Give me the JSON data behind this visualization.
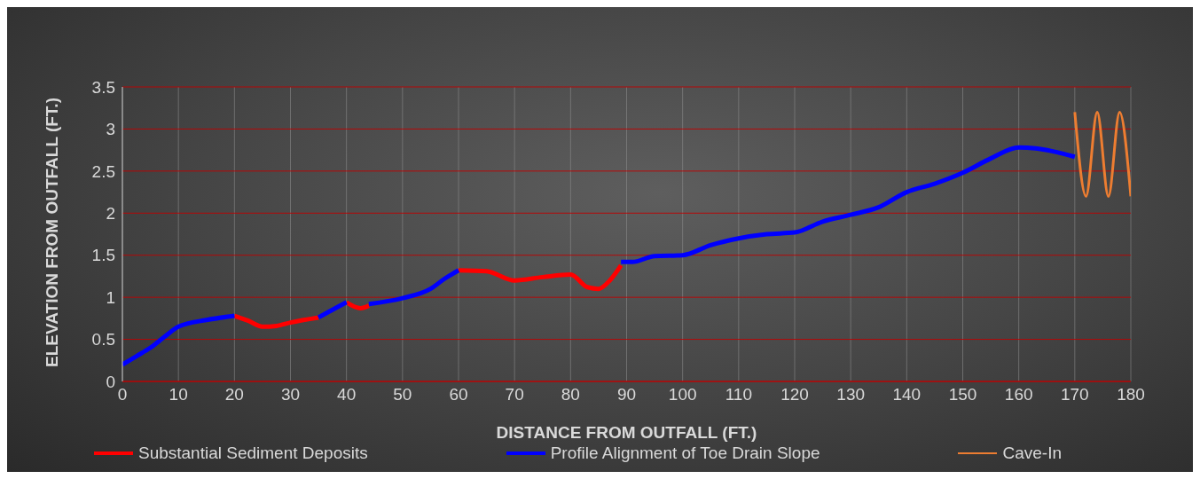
{
  "chart_data": {
    "type": "line",
    "xlabel": "DISTANCE FROM OUTFALL (FT.)",
    "ylabel": "ELEVATION FROM OUTFALL (FT.)",
    "xlim": [
      0,
      180
    ],
    "xticks": [
      0,
      10,
      20,
      30,
      40,
      50,
      60,
      70,
      80,
      90,
      100,
      110,
      120,
      130,
      140,
      150,
      160,
      170,
      180
    ],
    "ylim": [
      0,
      3.5
    ],
    "yticks": [
      0,
      0.5,
      1,
      1.5,
      2,
      2.5,
      3,
      3.5
    ],
    "grid": true,
    "legend": "bottom",
    "marker": "none",
    "line_style": "solid",
    "series": [
      {
        "name": "Substantial Sediment Deposits",
        "color": "#ff0000",
        "x": [
          20,
          22.5,
          25,
          27.5,
          30,
          35,
          37,
          40,
          42.5,
          44,
          52,
          60,
          65,
          70,
          75,
          80,
          83,
          85,
          87,
          89
        ],
        "values": [
          0.78,
          0.72,
          0.65,
          0.66,
          0.7,
          0.76,
          null,
          0.94,
          0.87,
          0.9,
          null,
          1.32,
          1.31,
          1.2,
          1.24,
          1.27,
          1.12,
          1.1,
          1.2,
          1.38
        ]
      },
      {
        "name": "Profile Alignment of Toe Drain Slope",
        "color": "#0000ff",
        "x": [
          0,
          2.5,
          5,
          7.5,
          10,
          15,
          20,
          27,
          35,
          38,
          40,
          42,
          44,
          50,
          55,
          57.5,
          60,
          75,
          89,
          91,
          95,
          100,
          105,
          110,
          115,
          120,
          125,
          130,
          135,
          140,
          145,
          150,
          155,
          160,
          163,
          170
        ],
        "values": [
          0.2,
          0.3,
          0.4,
          0.53,
          0.65,
          0.73,
          0.78,
          null,
          0.76,
          0.87,
          0.94,
          null,
          0.92,
          0.99,
          1.1,
          1.22,
          1.32,
          null,
          1.42,
          1.42,
          1.49,
          1.5,
          1.62,
          1.7,
          1.75,
          1.77,
          1.9,
          1.98,
          2.07,
          2.25,
          2.35,
          2.48,
          2.65,
          2.78,
          2.77,
          2.67
        ]
      },
      {
        "name": "Cave-In",
        "color": "#ed7d31",
        "x": [
          170,
          172,
          174,
          176,
          178,
          180
        ],
        "values": [
          3.2,
          2.2,
          3.2,
          2.2,
          3.2,
          2.2
        ]
      }
    ]
  }
}
